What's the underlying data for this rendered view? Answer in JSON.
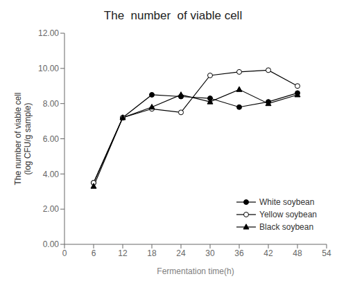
{
  "chart_data": {
    "type": "line",
    "title": "The  number  of viable cell",
    "xlabel": "Fermentation time(h)",
    "ylabel": "The number of viable cell\n(log CFU/g sample)",
    "x": [
      6,
      12,
      18,
      24,
      30,
      36,
      42,
      48
    ],
    "series": [
      {
        "name": "White soybean",
        "color": "#000000",
        "marker": "circle",
        "values": [
          3.5,
          7.2,
          8.5,
          8.4,
          8.3,
          7.8,
          8.1,
          8.6
        ]
      },
      {
        "name": "Yellow soybean",
        "color": "#000000",
        "marker": "open_circle",
        "values": [
          3.5,
          7.2,
          7.7,
          7.5,
          9.6,
          9.8,
          9.9,
          9.0
        ]
      },
      {
        "name": "Black soybean",
        "color": "#000000",
        "marker": "triangle",
        "values": [
          3.3,
          7.2,
          7.8,
          8.5,
          8.1,
          8.8,
          8.0,
          8.5
        ]
      }
    ],
    "xlim": [
      0,
      54
    ],
    "ylim": [
      0.0,
      12.0
    ],
    "xticks": [
      0,
      6,
      12,
      18,
      24,
      30,
      36,
      42,
      48,
      54
    ],
    "yticks": [
      {
        "value": 0.0,
        "label": "0.00"
      },
      {
        "value": 2.0,
        "label": "2.00"
      },
      {
        "value": 4.0,
        "label": "4.00"
      },
      {
        "value": 6.0,
        "label": "6.00"
      },
      {
        "value": 8.0,
        "label": "8.00"
      },
      {
        "value": 10.0,
        "label": "10.00"
      },
      {
        "value": 12.0,
        "label": "12.00"
      }
    ],
    "grid": false,
    "legend": "lower right"
  }
}
